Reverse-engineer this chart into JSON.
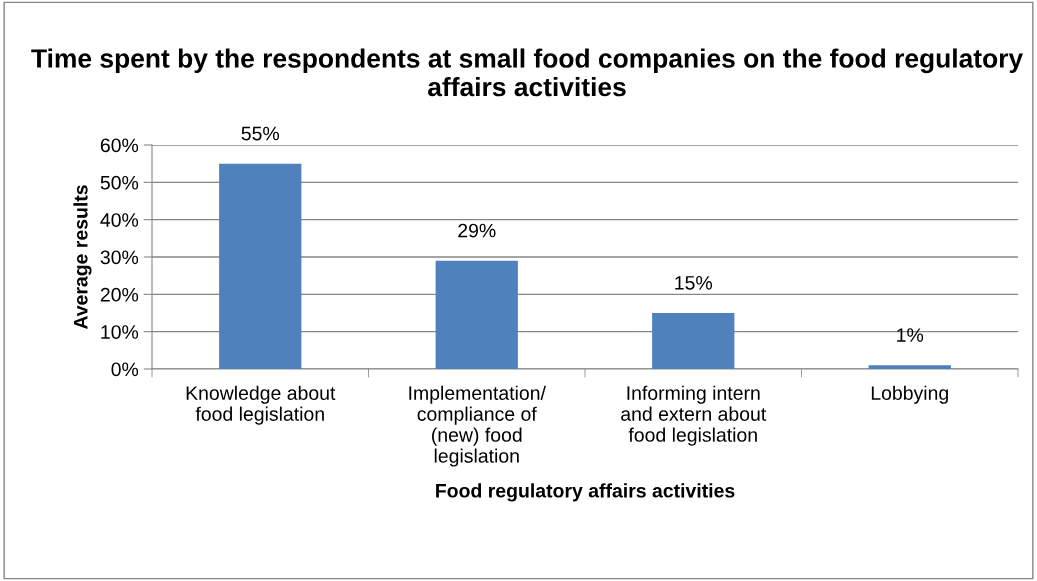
{
  "chart_data": {
    "type": "bar",
    "title": "Time spent by the respondents at small food companies on the food regulatory affairs activities",
    "xlabel": "Food regulatory affairs activities",
    "ylabel": "Average results",
    "categories": [
      "Knowledge about food legislation",
      "Implementation/ compliance of (new) food legislation",
      "Informing intern and extern about food legislation",
      "Lobbying"
    ],
    "values": [
      55,
      29,
      15,
      1
    ],
    "value_labels": [
      "55%",
      "29%",
      "15%",
      "1%"
    ],
    "color": "#4f81bd",
    "ylim": [
      0,
      60
    ],
    "yticks": [
      {
        "value": 0,
        "label": "0%"
      },
      {
        "value": 10,
        "label": "10%"
      },
      {
        "value": 20,
        "label": "20%"
      },
      {
        "value": 30,
        "label": "30%"
      },
      {
        "value": 40,
        "label": "40%"
      },
      {
        "value": 50,
        "label": "50%"
      },
      {
        "value": 60,
        "label": "60%"
      }
    ],
    "grid": "y",
    "legend": false
  }
}
